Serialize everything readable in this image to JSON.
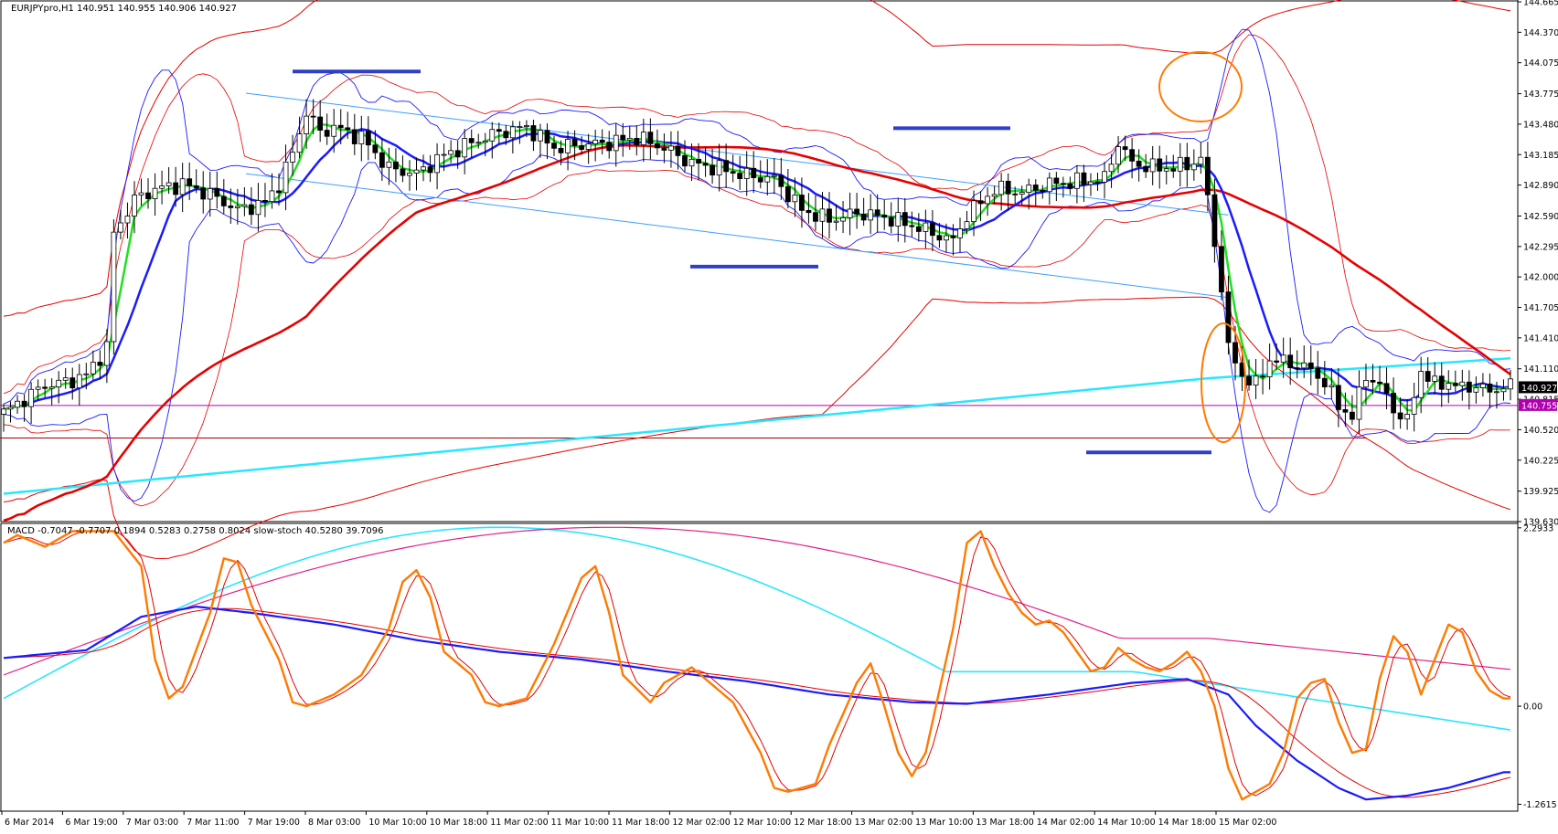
{
  "header": {
    "main_info": "EURJPYpro,H1  140.951 140.955 140.906 140.927",
    "sub_info": "MACD -0.7047 -0.7707 0.1894 0.5283 0.2758 0.8024  slow-stoch 40.5280 39.7096"
  },
  "colors": {
    "bullet_color": "#000000",
    "bb_blue": "#1a1aff",
    "sma_red": "#e60000",
    "ema_cyan": "#29e6ff",
    "green": "#20e020",
    "magenta_line": "#b000b0",
    "brown_line": "#a00000",
    "steel_channel": "#3aa0ff",
    "orange": "#ff7a00",
    "marker_blue": "#2f3fc8",
    "macd_pink": "#e0208a"
  },
  "chart_data": [
    {
      "type": "candlestick",
      "symbol": "EURJPYpro",
      "timeframe": "H1",
      "ylim": [
        139.63,
        144.665
      ],
      "y_ticks": [
        "144.665",
        "144.370",
        "144.075",
        "143.775",
        "143.480",
        "143.185",
        "142.890",
        "142.590",
        "142.295",
        "142.000",
        "141.705",
        "141.410",
        "141.110",
        "140.815",
        "140.520",
        "140.225",
        "139.925",
        "139.630"
      ],
      "x_ticks": [
        "6 Mar 2014",
        "6 Mar 19:00",
        "7 Mar 03:00",
        "7 Mar 11:00",
        "7 Mar 19:00",
        "8 Mar 03:00",
        "10 Mar 10:00",
        "10 Mar 18:00",
        "11 Mar 02:00",
        "11 Mar 10:00",
        "11 Mar 18:00",
        "12 Mar 02:00",
        "12 Mar 10:00",
        "12 Mar 18:00",
        "13 Mar 02:00",
        "13 Mar 10:00",
        "13 Mar 18:00",
        "14 Mar 02:00",
        "14 Mar 10:00",
        "14 Mar 18:00",
        "15 Mar 02:00"
      ],
      "current_price_label": "140.927",
      "horizontal_line_label": "140.755",
      "horizontal_line_value": 140.755,
      "support_line_value": 140.44,
      "close_path": [
        [
          0,
          140.68
        ],
        [
          3,
          140.82
        ],
        [
          6,
          140.95
        ],
        [
          9,
          140.98
        ],
        [
          12,
          141.05
        ],
        [
          15,
          141.32
        ],
        [
          16,
          142.42
        ],
        [
          19,
          142.75
        ],
        [
          22,
          142.85
        ],
        [
          26,
          142.9
        ],
        [
          30,
          142.8
        ],
        [
          34,
          142.65
        ],
        [
          38,
          142.72
        ],
        [
          40,
          142.9
        ],
        [
          42,
          143.2
        ],
        [
          44,
          143.6
        ],
        [
          46,
          143.4
        ],
        [
          48,
          143.45
        ],
        [
          52,
          143.35
        ],
        [
          56,
          143.05
        ],
        [
          60,
          143.0
        ],
        [
          64,
          143.18
        ],
        [
          68,
          143.3
        ],
        [
          72,
          143.4
        ],
        [
          76,
          143.45
        ],
        [
          80,
          143.25
        ],
        [
          84,
          143.28
        ],
        [
          88,
          143.3
        ],
        [
          92,
          143.35
        ],
        [
          96,
          143.25
        ],
        [
          100,
          143.1
        ],
        [
          104,
          143.05
        ],
        [
          108,
          142.98
        ],
        [
          112,
          142.95
        ],
        [
          116,
          142.65
        ],
        [
          120,
          142.55
        ],
        [
          124,
          142.62
        ],
        [
          128,
          142.58
        ],
        [
          132,
          142.5
        ],
        [
          136,
          142.4
        ],
        [
          138,
          142.35
        ],
        [
          140,
          142.6
        ],
        [
          144,
          142.85
        ],
        [
          148,
          142.82
        ],
        [
          152,
          142.9
        ],
        [
          156,
          142.92
        ],
        [
          160,
          142.95
        ],
        [
          162,
          143.3
        ],
        [
          164,
          143.1
        ],
        [
          168,
          143.05
        ],
        [
          172,
          143.08
        ],
        [
          174,
          143.15
        ],
        [
          175,
          142.75
        ],
        [
          177,
          141.9
        ],
        [
          178,
          141.3
        ],
        [
          180,
          141.05
        ],
        [
          182,
          140.95
        ],
        [
          184,
          141.2
        ],
        [
          188,
          141.15
        ],
        [
          190,
          141.1
        ],
        [
          192,
          140.98
        ],
        [
          194,
          140.75
        ],
        [
          196,
          140.65
        ],
        [
          198,
          141.05
        ],
        [
          200,
          140.95
        ],
        [
          202,
          140.72
        ],
        [
          204,
          140.6
        ],
        [
          206,
          141.1
        ],
        [
          208,
          140.95
        ],
        [
          210,
          140.98
        ],
        [
          212,
          140.92
        ],
        [
          214,
          140.95
        ],
        [
          216,
          140.88
        ],
        [
          218,
          140.95
        ],
        [
          219,
          140.927
        ]
      ],
      "channel_upper": [
        [
          0,
          143.78
        ],
        [
          178,
          142.6
        ]
      ],
      "channel_lower": [
        [
          0,
          143.0
        ],
        [
          178,
          141.8
        ]
      ],
      "resistance_markers": [
        [
          141.0,
          143.99
        ],
        [
          163.5,
          143.44
        ]
      ],
      "support_markers": [
        [
          125,
          142.1
        ],
        [
          197,
          140.3
        ]
      ]
    },
    {
      "type": "line",
      "indicator": "MACD + slow-stoch",
      "y_ticks": [
        "2.2933",
        "0.00",
        "-1.2615"
      ],
      "ylim": [
        -1.35,
        2.35
      ],
      "series": [
        {
          "name": "MACD",
          "values": [
            [
              0,
              0.62
            ],
            [
              12,
              0.72
            ],
            [
              20,
              1.15
            ],
            [
              28,
              1.28
            ],
            [
              36,
              1.2
            ],
            [
              48,
              1.05
            ],
            [
              60,
              0.85
            ],
            [
              72,
              0.7
            ],
            [
              84,
              0.6
            ],
            [
              96,
              0.45
            ],
            [
              108,
              0.32
            ],
            [
              120,
              0.15
            ],
            [
              132,
              0.05
            ],
            [
              140,
              0.03
            ],
            [
              152,
              0.15
            ],
            [
              164,
              0.3
            ],
            [
              172,
              0.35
            ],
            [
              178,
              0.15
            ],
            [
              182,
              -0.25
            ],
            [
              188,
              -0.7
            ],
            [
              194,
              -1.05
            ],
            [
              198,
              -1.2
            ],
            [
              204,
              -1.15
            ],
            [
              210,
              -1.05
            ],
            [
              218,
              -0.85
            ]
          ]
        },
        {
          "name": "slow-stoch",
          "values": [
            [
              0,
              2.1
            ],
            [
              2,
              2.2
            ],
            [
              6,
              2.05
            ],
            [
              10,
              2.25
            ],
            [
              16,
              2.25
            ],
            [
              20,
              1.8
            ],
            [
              22,
              0.6
            ],
            [
              24,
              0.1
            ],
            [
              26,
              0.25
            ],
            [
              30,
              1.2
            ],
            [
              32,
              1.9
            ],
            [
              34,
              1.85
            ],
            [
              36,
              1.3
            ],
            [
              40,
              0.6
            ],
            [
              42,
              0.05
            ],
            [
              44,
              0.0
            ],
            [
              48,
              0.15
            ],
            [
              52,
              0.4
            ],
            [
              56,
              1.0
            ],
            [
              58,
              1.6
            ],
            [
              60,
              1.75
            ],
            [
              62,
              1.4
            ],
            [
              64,
              0.7
            ],
            [
              68,
              0.4
            ],
            [
              70,
              0.05
            ],
            [
              72,
              0.0
            ],
            [
              76,
              0.1
            ],
            [
              80,
              0.8
            ],
            [
              84,
              1.65
            ],
            [
              86,
              1.8
            ],
            [
              88,
              1.2
            ],
            [
              90,
              0.4
            ],
            [
              94,
              0.05
            ],
            [
              96,
              0.3
            ],
            [
              100,
              0.5
            ],
            [
              102,
              0.35
            ],
            [
              106,
              0.05
            ],
            [
              110,
              -0.6
            ],
            [
              112,
              -1.05
            ],
            [
              114,
              -1.1
            ],
            [
              118,
              -1.0
            ],
            [
              120,
              -0.5
            ],
            [
              124,
              0.3
            ],
            [
              126,
              0.55
            ],
            [
              128,
              0.0
            ],
            [
              130,
              -0.6
            ],
            [
              132,
              -0.9
            ],
            [
              134,
              -0.6
            ],
            [
              136,
              0.2
            ],
            [
              138,
              1.0
            ],
            [
              140,
              2.1
            ],
            [
              142,
              2.25
            ],
            [
              144,
              1.8
            ],
            [
              146,
              1.45
            ],
            [
              148,
              1.2
            ],
            [
              150,
              1.05
            ],
            [
              152,
              1.1
            ],
            [
              154,
              0.95
            ],
            [
              156,
              0.7
            ],
            [
              158,
              0.45
            ],
            [
              160,
              0.5
            ],
            [
              162,
              0.75
            ],
            [
              164,
              0.6
            ],
            [
              166,
              0.5
            ],
            [
              168,
              0.45
            ],
            [
              170,
              0.55
            ],
            [
              172,
              0.7
            ],
            [
              174,
              0.45
            ],
            [
              176,
              0.0
            ],
            [
              178,
              -0.8
            ],
            [
              180,
              -1.2
            ],
            [
              184,
              -1.0
            ],
            [
              186,
              -0.6
            ],
            [
              188,
              0.1
            ],
            [
              190,
              0.3
            ],
            [
              192,
              0.35
            ],
            [
              194,
              -0.2
            ],
            [
              196,
              -0.6
            ],
            [
              198,
              -0.55
            ],
            [
              200,
              0.35
            ],
            [
              202,
              0.9
            ],
            [
              204,
              0.7
            ],
            [
              206,
              0.15
            ],
            [
              208,
              0.6
            ],
            [
              210,
              1.05
            ],
            [
              212,
              0.95
            ],
            [
              214,
              0.45
            ],
            [
              216,
              0.2
            ],
            [
              218,
              0.1
            ]
          ]
        }
      ]
    }
  ]
}
